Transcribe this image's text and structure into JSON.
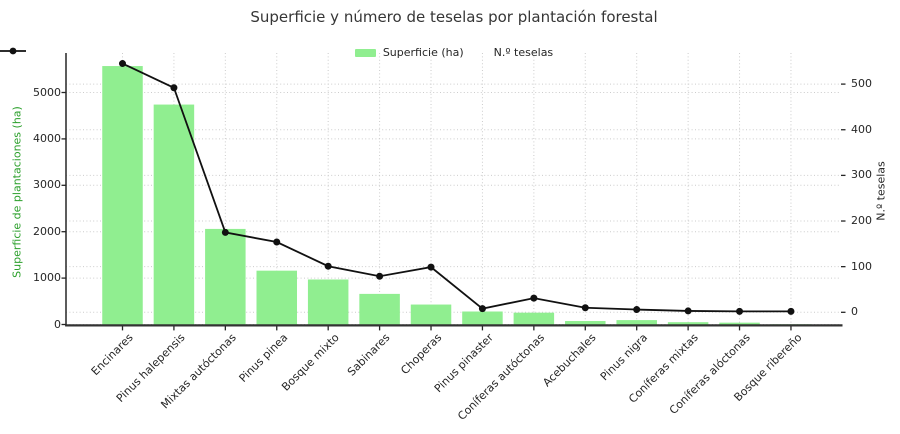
{
  "title": "Superficie y número de teselas por plantación forestal",
  "legend": {
    "superficie_label": "Superficie (ha)",
    "teselas_label": "N.º teselas"
  },
  "left_axis": {
    "label": "Superficie de plantaciones (ha)",
    "ticks": [
      0,
      1000,
      2000,
      3000,
      4000,
      5000
    ],
    "color": "#2ca02c"
  },
  "right_axis": {
    "label": "N.º teselas",
    "ticks": [
      0,
      100,
      200,
      300,
      400,
      500
    ],
    "color": "#262626"
  },
  "style": {
    "bar_color": "#90ee90",
    "line_color": "#111111",
    "grid_color": "#cccccc",
    "spine_color": "#333333",
    "title_color": "#363636"
  },
  "chart_data": {
    "type": "bar",
    "subtype": "bar+line dual axis",
    "title": "Superficie y número de teselas por plantación forestal",
    "categories": [
      "Encinares",
      "Pinus halepensis",
      "Mixtas autóctonas",
      "Pinus pinea",
      "Bosque mixto",
      "Sabinares",
      "Choperas",
      "Pinus pinaster",
      "Coníferas autóctonas",
      "Acebuchales",
      "Pinus nigra",
      "Coníferas mixtas",
      "Coníferas alóctonas",
      "Bosque ribereño"
    ],
    "series": [
      {
        "name": "Superficie (ha)",
        "type": "bar",
        "axis": "left",
        "color": "#90ee90",
        "values": [
          5570,
          4740,
          2060,
          1160,
          970,
          660,
          430,
          280,
          255,
          75,
          95,
          50,
          40,
          5
        ]
      },
      {
        "name": "N.º teselas",
        "type": "line",
        "axis": "right",
        "color": "#111111",
        "marker": "circle",
        "values": [
          545,
          492,
          175,
          154,
          101,
          79,
          99,
          8,
          31,
          10,
          6,
          3,
          2,
          2
        ]
      }
    ],
    "xlabel": "",
    "ylabel_left": "Superficie de plantaciones (ha)",
    "ylabel_right": "N.º teselas",
    "ylim_left": [
      0,
      5840
    ],
    "ylim_right": [
      -28,
      568
    ],
    "grid": "dotted horizontal (both axes' ticks) and vertical (category) gridlines",
    "legend_position": "top center, frameless"
  }
}
